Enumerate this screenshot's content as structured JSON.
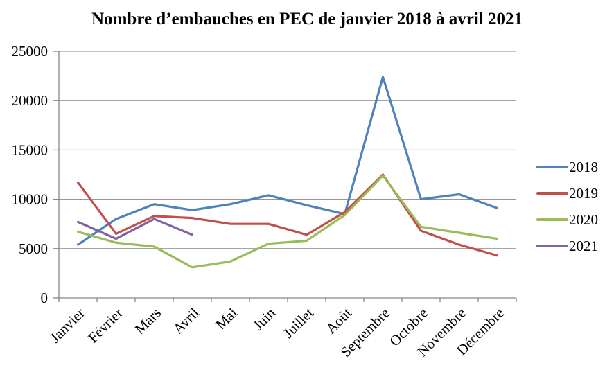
{
  "chart_data": {
    "type": "line",
    "title": "Nombre d’embauches en PEC de janvier 2018 à avril 2021",
    "categories": [
      "Janvier",
      "Février",
      "Mars",
      "Avril",
      "Mai",
      "Juin",
      "Juillet",
      "Août",
      "Septembre",
      "Octobre",
      "Novembre",
      "Décembre"
    ],
    "series": [
      {
        "name": "2018",
        "color": "#4F81BD",
        "values": [
          5400,
          8000,
          9500,
          8900,
          9500,
          10400,
          9400,
          8500,
          22400,
          10000,
          10500,
          9100
        ]
      },
      {
        "name": "2019",
        "color": "#C0504D",
        "values": [
          11700,
          6500,
          8300,
          8100,
          7500,
          7500,
          6400,
          8700,
          12500,
          6800,
          5400,
          4300
        ]
      },
      {
        "name": "2020",
        "color": "#9BBB59",
        "values": [
          6700,
          5600,
          5200,
          3100,
          3700,
          5500,
          5800,
          8400,
          12400,
          7200,
          6600,
          6000
        ]
      },
      {
        "name": "2021",
        "color": "#8064A2",
        "values": [
          7700,
          6000,
          8000,
          6400
        ]
      }
    ],
    "xlabel": "",
    "ylabel": "",
    "ylim": [
      0,
      25000
    ],
    "yticks": [
      0,
      5000,
      10000,
      15000,
      20000,
      25000
    ],
    "grid": true,
    "legend_position": "right",
    "axis_color": "#878787",
    "grid_color": "#878787",
    "text_color": "#000000",
    "background": "#FFFFFF"
  }
}
